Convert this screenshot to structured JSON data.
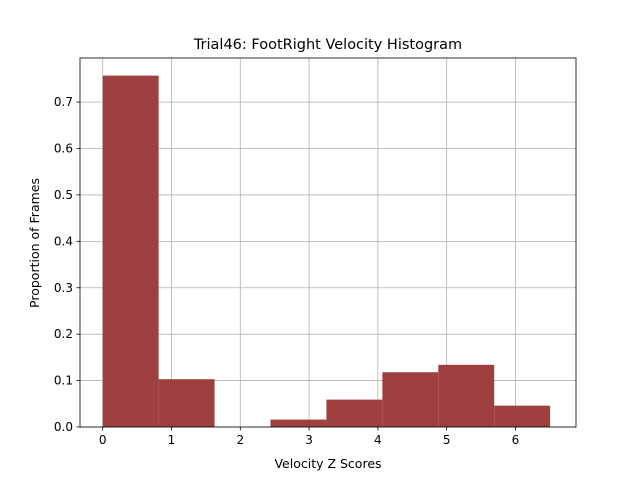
{
  "chart_data": {
    "type": "bar",
    "title": "Trial46: FootRight Velocity Histogram",
    "xlabel": "Velocity Z Scores",
    "ylabel": "Proportion of Frames",
    "xlim": [
      -0.33,
      6.88
    ],
    "ylim": [
      0.0,
      0.795
    ],
    "xticks": [
      0,
      1,
      2,
      3,
      4,
      5,
      6
    ],
    "yticks": [
      0.0,
      0.1,
      0.2,
      0.3,
      0.4,
      0.5,
      0.6,
      0.7
    ],
    "ytick_labels": [
      "0.0",
      "0.1",
      "0.2",
      "0.3",
      "0.4",
      "0.5",
      "0.6",
      "0.7"
    ],
    "grid": true,
    "bar_color": "#9e4040",
    "bins": [
      {
        "x0": 0.0,
        "x1": 0.813,
        "value": 0.757
      },
      {
        "x0": 0.813,
        "x1": 1.626,
        "value": 0.103
      },
      {
        "x0": 1.626,
        "x1": 2.439,
        "value": 0.0
      },
      {
        "x0": 2.439,
        "x1": 3.252,
        "value": 0.016
      },
      {
        "x0": 3.252,
        "x1": 4.065,
        "value": 0.059
      },
      {
        "x0": 4.065,
        "x1": 4.878,
        "value": 0.118
      },
      {
        "x0": 4.878,
        "x1": 5.691,
        "value": 0.134
      },
      {
        "x0": 5.691,
        "x1": 6.504,
        "value": 0.046
      }
    ]
  }
}
